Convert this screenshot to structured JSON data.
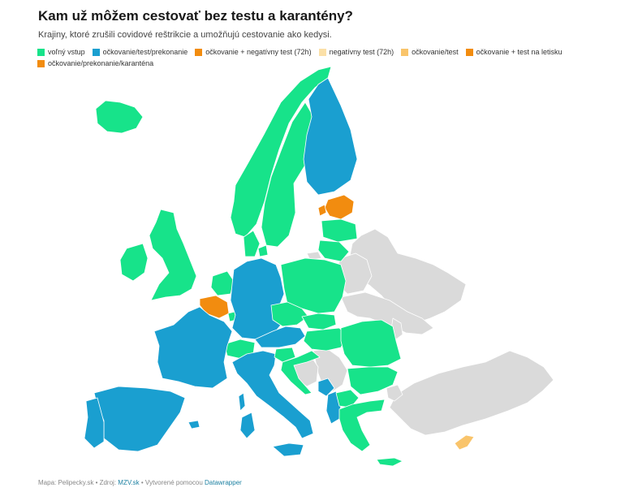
{
  "title": "Kam už môžem cestovať bez testu a karantény?",
  "subtitle": "Krajiny, ktoré zrušili covidové reštrikcie a umožňujú cestovanie ako kedysi.",
  "legend": [
    {
      "label": "voľný vstup",
      "color": "#17e38a"
    },
    {
      "label": "očkovanie/test/prekonanie",
      "color": "#1a9fd0"
    },
    {
      "label": "očkovanie + negatívny test (72h)",
      "color": "#f28c0f"
    },
    {
      "label": "negatívny test (72h)",
      "color": "#fbe0a8"
    },
    {
      "label": "očkovanie/test",
      "color": "#f9c46b"
    },
    {
      "label": "očkovanie + test na letisku",
      "color": "#f28c0f"
    },
    {
      "label": "očkovanie/prekonanie/karanténa",
      "color": "#f28c0f"
    }
  ],
  "colors": {
    "free": "#17e38a",
    "vax_test_recovered": "#1a9fd0",
    "orange": "#f28c0f",
    "vax_test": "#f9c46b",
    "no_data": "#dadada"
  },
  "map": {
    "countries": [
      {
        "name": "Iceland",
        "category": "free"
      },
      {
        "name": "Ireland",
        "category": "free"
      },
      {
        "name": "United Kingdom",
        "category": "free"
      },
      {
        "name": "Norway",
        "category": "free"
      },
      {
        "name": "Sweden",
        "category": "free"
      },
      {
        "name": "Finland",
        "category": "vax_test_recovered"
      },
      {
        "name": "Estonia",
        "category": "orange"
      },
      {
        "name": "Latvia",
        "category": "free"
      },
      {
        "name": "Lithuania",
        "category": "free"
      },
      {
        "name": "Denmark",
        "category": "free"
      },
      {
        "name": "Netherlands",
        "category": "free"
      },
      {
        "name": "Belgium",
        "category": "orange"
      },
      {
        "name": "Luxembourg",
        "category": "free"
      },
      {
        "name": "Germany",
        "category": "vax_test_recovered"
      },
      {
        "name": "Poland",
        "category": "free"
      },
      {
        "name": "Czechia",
        "category": "free"
      },
      {
        "name": "Slovakia",
        "category": "free"
      },
      {
        "name": "Austria",
        "category": "vax_test_recovered"
      },
      {
        "name": "Switzerland",
        "category": "free"
      },
      {
        "name": "France",
        "category": "vax_test_recovered"
      },
      {
        "name": "Spain",
        "category": "vax_test_recovered"
      },
      {
        "name": "Portugal",
        "category": "vax_test_recovered"
      },
      {
        "name": "Italy",
        "category": "vax_test_recovered"
      },
      {
        "name": "Slovenia",
        "category": "free"
      },
      {
        "name": "Hungary",
        "category": "free"
      },
      {
        "name": "Croatia",
        "category": "free"
      },
      {
        "name": "Bosnia and Herzegovina",
        "category": "no_data"
      },
      {
        "name": "Serbia",
        "category": "no_data"
      },
      {
        "name": "Montenegro",
        "category": "vax_test_recovered"
      },
      {
        "name": "Albania",
        "category": "vax_test_recovered"
      },
      {
        "name": "North Macedonia",
        "category": "free"
      },
      {
        "name": "Bulgaria",
        "category": "free"
      },
      {
        "name": "Romania",
        "category": "free"
      },
      {
        "name": "Moldova",
        "category": "no_data"
      },
      {
        "name": "Greece",
        "category": "free"
      },
      {
        "name": "Cyprus",
        "category": "vax_test"
      },
      {
        "name": "Turkey",
        "category": "no_data"
      },
      {
        "name": "Ukraine",
        "category": "no_data"
      },
      {
        "name": "Belarus",
        "category": "no_data"
      },
      {
        "name": "Russia",
        "category": "no_data"
      }
    ]
  },
  "footer": {
    "map_credit": "Mapa: Pelipecky.sk",
    "source_label": "Zdroj:",
    "source_link": "MZV.sk",
    "created_label": "Vytvorené pomocou",
    "created_link": "Datawrapper"
  }
}
